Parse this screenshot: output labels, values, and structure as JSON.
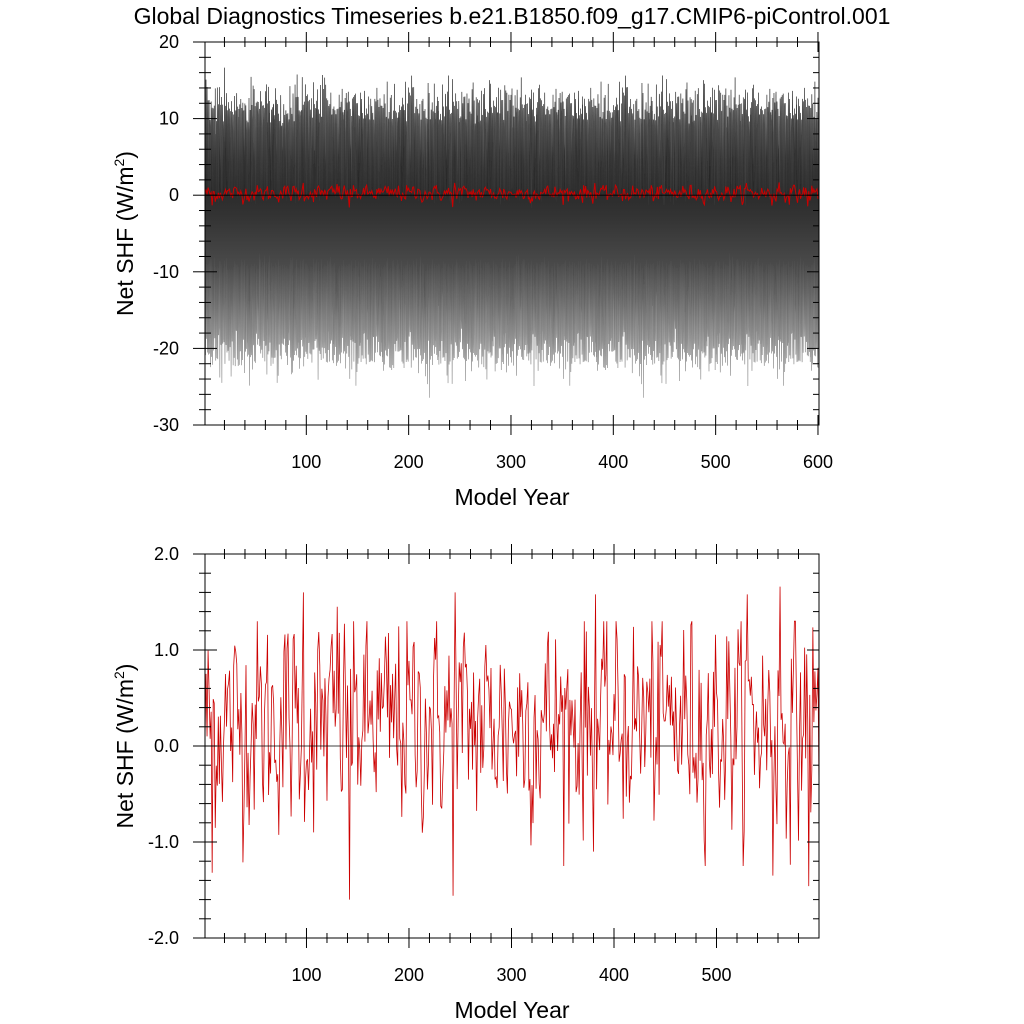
{
  "title": "Global Diagnostics Timeseries b.e21.B1850.f09_g17.CMIP6-piControl.001",
  "chart_data": [
    {
      "type": "line",
      "title": "Global Diagnostics Timeseries b.e21.B1850.f09_g17.CMIP6-piControl.001",
      "xlabel": "Model Year",
      "ylabel": "Net SHF (W/m",
      "ylabel_sup": "2",
      "ylabel_close": ")",
      "xlim": [
        1,
        601
      ],
      "ylim": [
        -30,
        20
      ],
      "xticks": [
        100,
        200,
        300,
        400,
        500,
        600
      ],
      "xticklabels": [
        "100",
        "200",
        "300",
        "400",
        "500",
        "600"
      ],
      "yticks": [
        -30,
        -20,
        -10,
        0,
        10,
        20
      ],
      "yticklabels": [
        "-30",
        "-20",
        "-10",
        "0",
        "10",
        "20"
      ],
      "zero_line": true,
      "series": [
        {
          "style": "monthly",
          "color": "#000000",
          "color_low": "#888888",
          "envelope": {
            "typical_max": 13,
            "typical_min": -22,
            "abs_max": 18.2,
            "abs_min": -27.4
          },
          "months_per_year": 12
        },
        {
          "style": "annual_mean",
          "color": "#cc0000",
          "mean": 0.3,
          "range": [
            -1.6,
            1.7
          ]
        }
      ]
    },
    {
      "type": "line",
      "xlabel": "Model Year",
      "ylabel": "Net SHF (W/m",
      "ylabel_sup": "2",
      "ylabel_close": ")",
      "xlim": [
        1,
        600
      ],
      "ylim": [
        -2.0,
        2.0
      ],
      "xticks": [
        100,
        200,
        300,
        400,
        500
      ],
      "xticklabels": [
        "100",
        "200",
        "300",
        "400",
        "500"
      ],
      "yticks": [
        -2.0,
        -1.0,
        0.0,
        1.0,
        2.0
      ],
      "yticklabels": [
        "-2.0",
        "-1.0",
        "0.0",
        "1.0",
        "2.0"
      ],
      "zero_line": true,
      "series": [
        {
          "style": "annual_mean",
          "color": "#cc0000",
          "mean": 0.25,
          "range": [
            -1.6,
            1.66
          ],
          "peaks": [
            [
              97,
              1.6
            ],
            [
              130,
              1.45
            ],
            [
              245,
              1.6
            ],
            [
              382,
              1.58
            ],
            [
              530,
              1.58
            ],
            [
              562,
              1.66
            ],
            [
              8,
              -1.32
            ],
            [
              142,
              -1.6
            ],
            [
              243,
              -1.56
            ],
            [
              555,
              -1.35
            ],
            [
              590,
              -1.46
            ]
          ]
        }
      ]
    }
  ]
}
